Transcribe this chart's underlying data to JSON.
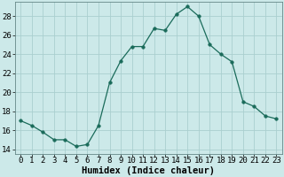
{
  "x": [
    0,
    1,
    2,
    3,
    4,
    5,
    6,
    7,
    8,
    9,
    10,
    11,
    12,
    13,
    14,
    15,
    16,
    17,
    18,
    19,
    20,
    21,
    22,
    23
  ],
  "y": [
    17.0,
    16.5,
    15.8,
    15.0,
    15.0,
    14.3,
    14.5,
    16.5,
    21.0,
    23.3,
    24.8,
    24.8,
    26.7,
    26.5,
    28.2,
    29.0,
    28.0,
    25.0,
    24.0,
    23.2,
    19.0,
    18.5,
    17.5,
    17.2
  ],
  "line_color": "#1a6b5a",
  "marker": "o",
  "marker_size": 2.5,
  "bg_color": "#cce9e9",
  "grid_color": "#aacfcf",
  "xlabel": "Humidex (Indice chaleur)",
  "ylim": [
    13.5,
    29.5
  ],
  "xlim": [
    -0.5,
    23.5
  ],
  "yticks": [
    14,
    16,
    18,
    20,
    22,
    24,
    26,
    28
  ],
  "xticks": [
    0,
    1,
    2,
    3,
    4,
    5,
    6,
    7,
    8,
    9,
    10,
    11,
    12,
    13,
    14,
    15,
    16,
    17,
    18,
    19,
    20,
    21,
    22,
    23
  ],
  "xlabel_fontsize": 7.5,
  "tick_fontsize": 6.5
}
